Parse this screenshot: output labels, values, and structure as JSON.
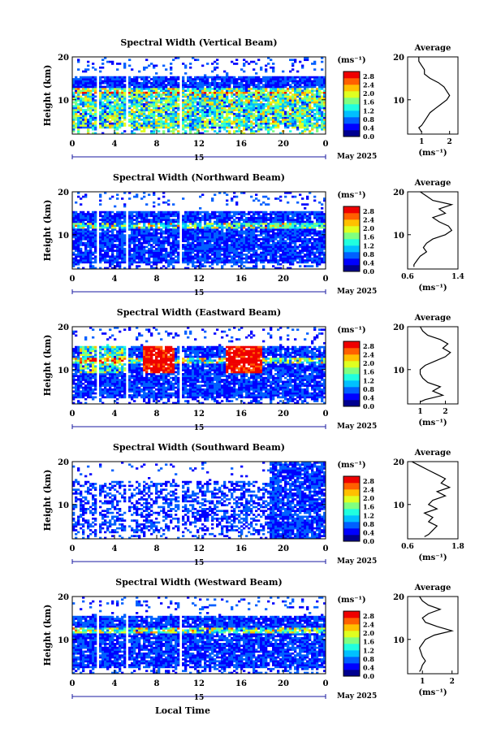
{
  "chart_data": [
    {
      "type": "heatmap",
      "title": "Spectral Width (Vertical Beam)",
      "ylabel": "Height (km)",
      "ylim": [
        2,
        20
      ],
      "yticks": [
        "20",
        "10"
      ],
      "xlim": [
        0,
        24
      ],
      "xticks": [
        "0",
        "4",
        "8",
        "12",
        "16",
        "20",
        "0"
      ],
      "date_marker": "15",
      "date_label": "May 2025",
      "colorbar": {
        "unit": "(ms⁻¹)",
        "labels": [
          "2.8",
          "2.4",
          "2.0",
          "1.6",
          "1.2",
          "0.8",
          "0.4",
          "0.0"
        ],
        "range": [
          0.0,
          3.0
        ]
      },
      "profile": {
        "title": "Average",
        "xlabel": "(ms⁻¹)",
        "xticks": [
          "1",
          "2"
        ],
        "xlim": [
          0.5,
          2.3
        ],
        "yticks": [
          "20",
          "10"
        ],
        "x": [
          0.9,
          0.9,
          1.0,
          1.1,
          1.1,
          1.3,
          1.6,
          1.8,
          1.9,
          2.0,
          1.9,
          1.7,
          1.5,
          1.3,
          1.2,
          1.1,
          1.0,
          0.9,
          0.95,
          1.0
        ],
        "y": [
          20,
          19,
          18,
          17,
          16,
          15,
          14,
          13,
          12,
          11,
          10,
          9,
          8,
          7,
          6,
          5,
          4,
          3.5,
          3,
          2.5
        ]
      }
    },
    {
      "type": "heatmap",
      "title": "Spectral Width (Northward Beam)",
      "ylabel": "Height (km)",
      "ylim": [
        2,
        20
      ],
      "yticks": [
        "20",
        "10"
      ],
      "xlim": [
        0,
        24
      ],
      "xticks": [
        "0",
        "4",
        "8",
        "12",
        "16",
        "20",
        "0"
      ],
      "date_marker": "15",
      "date_label": "May 2025",
      "colorbar": {
        "unit": "(ms⁻¹)",
        "labels": [
          "2.8",
          "2.4",
          "2.0",
          "1.6",
          "1.2",
          "0.8",
          "0.4",
          "0.0"
        ],
        "range": [
          0.0,
          3.0
        ]
      },
      "profile": {
        "title": "Average",
        "xlabel": "(ms⁻¹)",
        "xticks": [
          "0.6",
          "1.4"
        ],
        "xlim": [
          0.6,
          1.4
        ],
        "x": [
          0.8,
          0.9,
          1.0,
          1.3,
          1.1,
          1.2,
          1.0,
          1.1,
          1.25,
          1.3,
          1.2,
          1.0,
          0.9,
          0.85,
          0.9,
          0.8,
          0.75,
          0.7,
          0.7
        ],
        "y": [
          20,
          19,
          18,
          17,
          16,
          15,
          14,
          13,
          12,
          11,
          10,
          9,
          8,
          7,
          6,
          5,
          4,
          3,
          2.5
        ]
      }
    },
    {
      "type": "heatmap",
      "title": "Spectral Width (Eastward Beam)",
      "ylabel": "Height (km)",
      "ylim": [
        2,
        20
      ],
      "yticks": [
        "20",
        "10"
      ],
      "xlim": [
        0,
        24
      ],
      "xticks": [
        "0",
        "4",
        "8",
        "12",
        "16",
        "20",
        "0"
      ],
      "date_marker": "15",
      "date_label": "May 2025",
      "colorbar": {
        "unit": "(ms⁻¹)",
        "labels": [
          "2.8",
          "2.4",
          "2.0",
          "1.6",
          "1.2",
          "0.8",
          "0.4",
          "0.0"
        ],
        "range": [
          0.0,
          3.0
        ]
      },
      "profile": {
        "title": "Average",
        "xlabel": "(ms⁻¹)",
        "xticks": [
          "1",
          "2"
        ],
        "xlim": [
          0.5,
          2.5
        ],
        "x": [
          1.0,
          1.1,
          1.3,
          1.8,
          2.1,
          1.9,
          2.2,
          2.0,
          1.6,
          1.2,
          1.0,
          1.0,
          1.1,
          1.3,
          1.8,
          1.5,
          1.9,
          1.2,
          1.0
        ],
        "y": [
          20,
          19,
          18,
          17,
          16,
          15,
          14,
          13,
          12,
          11,
          10,
          9,
          8,
          7,
          6,
          5,
          4,
          3,
          2.5
        ]
      }
    },
    {
      "type": "heatmap",
      "title": "Spectral Width (Southward Beam)",
      "ylabel": "Height (km)",
      "ylim": [
        2,
        20
      ],
      "yticks": [
        "20",
        "10"
      ],
      "xlim": [
        0,
        24
      ],
      "xticks": [
        "0",
        "4",
        "8",
        "12",
        "16",
        "20",
        "0"
      ],
      "date_marker": "15",
      "date_label": "May 2025",
      "colorbar": {
        "unit": "(ms⁻¹)",
        "labels": [
          "2.8",
          "2.4",
          "2.0",
          "1.6",
          "1.2",
          "0.8",
          "0.4",
          "0.0"
        ],
        "range": [
          0.0,
          3.0
        ]
      },
      "profile": {
        "title": "Average",
        "xlabel": "(ms⁻¹)",
        "xticks": [
          "0.6",
          "1.8"
        ],
        "xlim": [
          0.6,
          1.8
        ],
        "x": [
          0.7,
          0.9,
          1.1,
          1.3,
          1.5,
          1.4,
          1.6,
          1.3,
          1.5,
          1.2,
          1.1,
          1.3,
          1.0,
          1.2,
          1.1,
          1.3,
          1.2,
          1.1,
          1.0
        ],
        "y": [
          20,
          19,
          18,
          17,
          16,
          15,
          14,
          13,
          12,
          11,
          10,
          9,
          8,
          7,
          6,
          5,
          4,
          3,
          2.5
        ]
      }
    },
    {
      "type": "heatmap",
      "title": "Spectral Width (Westward Beam)",
      "ylabel": "Height (km)",
      "ylim": [
        2,
        20
      ],
      "yticks": [
        "20",
        "10"
      ],
      "xlim": [
        0,
        24
      ],
      "xticks": [
        "0",
        "4",
        "8",
        "12",
        "16",
        "20",
        "0"
      ],
      "date_marker": "15",
      "date_label": "May 2025",
      "colorbar": {
        "unit": "(ms⁻¹)",
        "labels": [
          "2.8",
          "2.4",
          "2.0",
          "1.6",
          "1.2",
          "0.8",
          "0.4",
          "0.0"
        ],
        "range": [
          0.0,
          3.0
        ]
      },
      "profile": {
        "title": "Average",
        "xlabel": "(ms⁻¹)",
        "xticks": [
          "1",
          "2"
        ],
        "xlim": [
          0.5,
          2.2
        ],
        "x": [
          0.9,
          1.0,
          1.2,
          1.6,
          1.2,
          1.0,
          1.1,
          1.5,
          2.0,
          1.4,
          1.1,
          1.0,
          0.9,
          0.95,
          1.0,
          1.1,
          1.0,
          0.95,
          0.9
        ],
        "y": [
          20,
          19,
          18,
          17,
          16,
          15,
          14,
          13,
          12,
          11,
          10,
          9,
          8,
          7,
          6,
          5,
          4,
          3,
          2.5
        ]
      }
    }
  ],
  "footer": {
    "xlabel": "Local Time"
  },
  "colors": {
    "scale": [
      "#00008f",
      "#0000ff",
      "#0060ff",
      "#00c0ff",
      "#20ffdf",
      "#80ff80",
      "#dfff20",
      "#ffc000",
      "#ff6000",
      "#ef0000"
    ]
  }
}
